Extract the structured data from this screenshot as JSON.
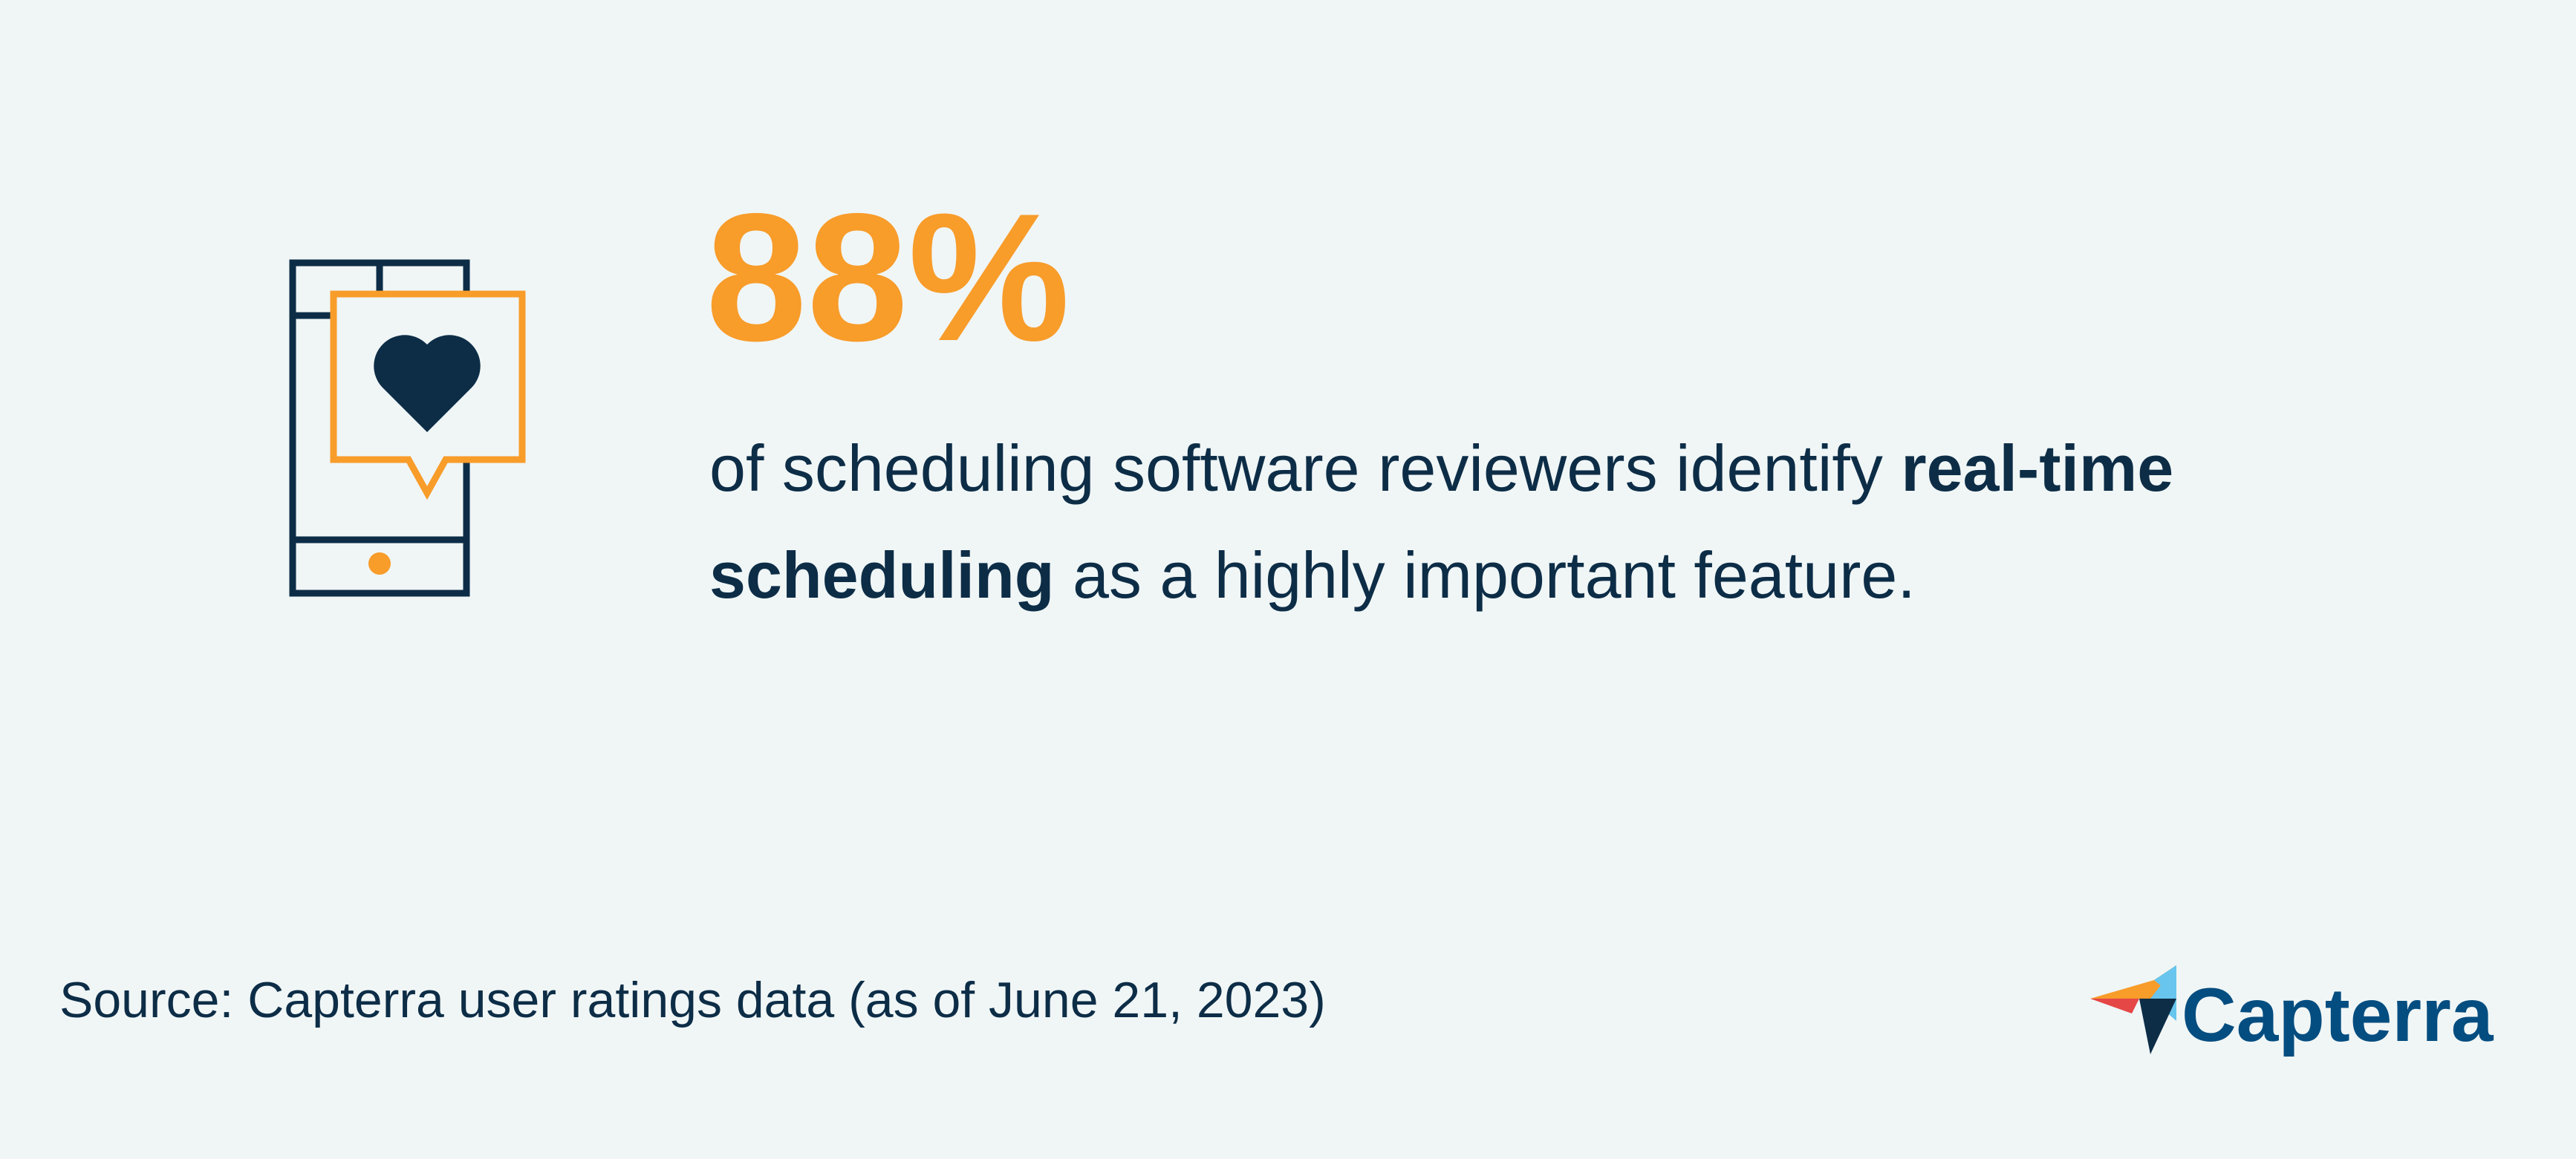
{
  "stat": "88%",
  "description": {
    "before": "of scheduling software reviewers identify ",
    "bold": "real-time scheduling",
    "after": " as a highly important feature."
  },
  "source": "Source: Capterra user ratings data (as of June 21, 2023)",
  "logo": "Capterra"
}
